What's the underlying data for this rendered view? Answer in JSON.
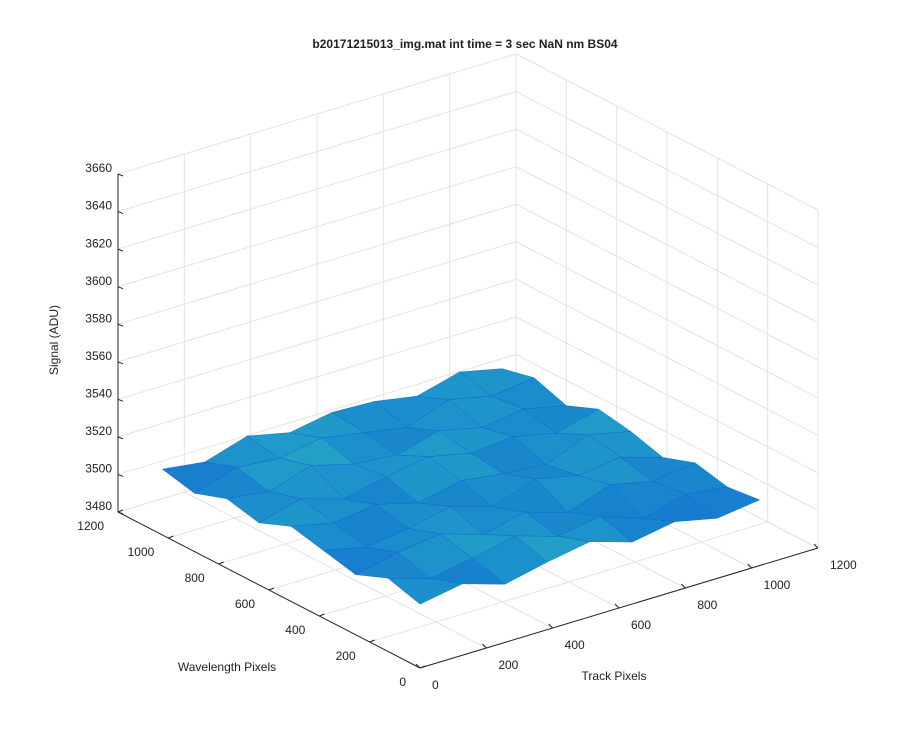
{
  "chart_data": {
    "type": "surface",
    "title": "b20171215013_img.mat int time = 3 sec  NaN nm BS04",
    "xlabel": "Track Pixels",
    "ylabel": "Wavelength Pixels",
    "zlabel": "Signal (ADU)",
    "x": [
      0,
      128,
      256,
      384,
      512,
      640,
      768,
      896,
      1024
    ],
    "y": [
      0,
      128,
      256,
      384,
      512,
      640,
      768,
      896,
      1024
    ],
    "z": [
      [
        3514,
        3518,
        3511,
        3516,
        3520,
        3513,
        3517,
        3512,
        3515
      ],
      [
        3519,
        3512,
        3516,
        3521,
        3514,
        3518,
        3510,
        3516,
        3513
      ],
      [
        3512,
        3517,
        3520,
        3513,
        3518,
        3511,
        3519,
        3514,
        3517
      ],
      [
        3516,
        3511,
        3514,
        3519,
        3512,
        3520,
        3515,
        3518,
        3511
      ],
      [
        3520,
        3515,
        3518,
        3512,
        3517,
        3514,
        3512,
        3521,
        3516
      ],
      [
        3513,
        3519,
        3512,
        3517,
        3521,
        3516,
        3518,
        3513,
        3519
      ],
      [
        3517,
        3514,
        3521,
        3515,
        3513,
        3519,
        3514,
        3517,
        3512
      ],
      [
        3511,
        3518,
        3516,
        3520,
        3516,
        3512,
        3520,
        3515,
        3518
      ],
      [
        3515,
        3512,
        3519,
        3514,
        3518,
        3517,
        3513,
        3519,
        3514
      ]
    ],
    "xlim": [
      0,
      1200
    ],
    "ylim": [
      0,
      1200
    ],
    "zlim": [
      3480,
      3660
    ],
    "xticks": [
      0,
      200,
      400,
      600,
      800,
      1000,
      1200
    ],
    "yticks": [
      0,
      200,
      400,
      600,
      800,
      1000,
      1200
    ],
    "zticks": [
      3480,
      3500,
      3520,
      3540,
      3560,
      3580,
      3600,
      3620,
      3640,
      3660
    ],
    "grid": true,
    "colormap": [
      "#0b5fd4",
      "#2bb8c4"
    ]
  }
}
